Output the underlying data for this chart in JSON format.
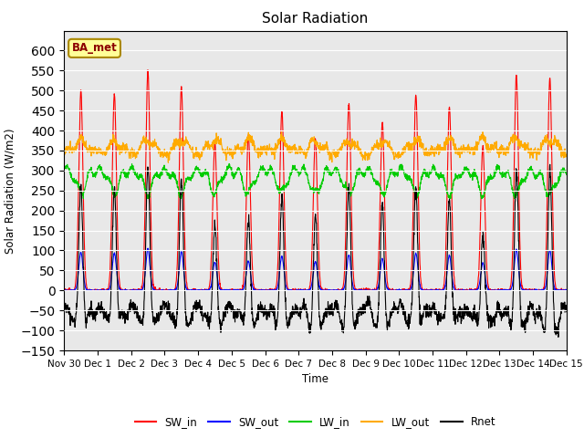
{
  "title": "Solar Radiation",
  "ylabel": "Solar Radiation (W/m2)",
  "xlabel": "Time",
  "ylim": [
    -150,
    650
  ],
  "yticks": [
    -150,
    -100,
    -50,
    0,
    50,
    100,
    150,
    200,
    250,
    300,
    350,
    400,
    450,
    500,
    550,
    600
  ],
  "num_days": 15,
  "annotation": "BA_met",
  "colors": {
    "SW_in": "#ff0000",
    "SW_out": "#0000ff",
    "LW_in": "#00cc00",
    "LW_out": "#ffaa00",
    "Rnet": "#000000"
  },
  "legend_labels": [
    "SW_in",
    "SW_out",
    "LW_in",
    "LW_out",
    "Rnet"
  ],
  "background_color": "#e8e8e8",
  "figsize": [
    6.4,
    4.8
  ],
  "dpi": 100
}
